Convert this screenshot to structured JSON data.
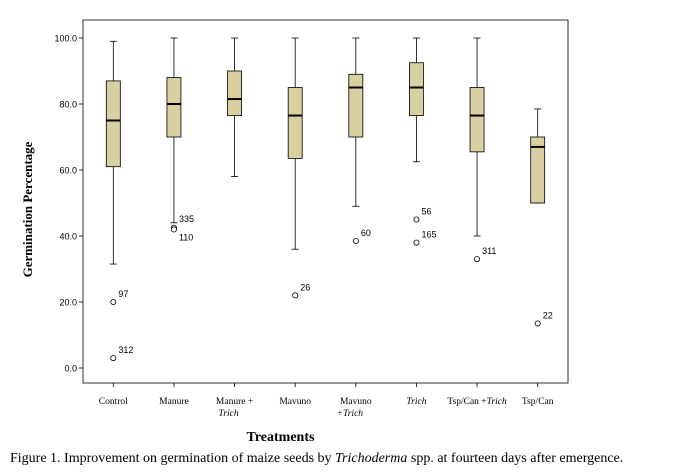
{
  "chart_data": {
    "type": "boxplot",
    "xlabel": "Treatments",
    "ylabel": "Germination Percentage",
    "ylim": [
      0,
      100
    ],
    "yticks": [
      "0.0",
      "20.0",
      "40.0",
      "60.0",
      "80.0",
      "100.0"
    ],
    "box_color": "#d8d0a0",
    "categories": [
      {
        "line1": "Control",
        "line2": "",
        "italic": false,
        "italic2": false
      },
      {
        "line1": "Manure",
        "line2": "",
        "italic": false,
        "italic2": false
      },
      {
        "line1": "Manure +",
        "line2": "Trich",
        "italic": false,
        "italic2": true
      },
      {
        "line1": "Mavuno",
        "line2": "",
        "italic": false,
        "italic2": false
      },
      {
        "line1": "Mavuno",
        "line2": "+Trich",
        "italic": false,
        "italic2": true
      },
      {
        "line1": "Trich",
        "line2": "",
        "italic": true,
        "italic2": false
      },
      {
        "line1": "Tsp/Can +",
        "line1b": "Trich",
        "line2": "",
        "italic": false,
        "italic2": false
      },
      {
        "line1": "Tsp/Can",
        "line2": "",
        "italic": false,
        "italic2": false
      }
    ],
    "boxes": [
      {
        "whisker_low": 31.5,
        "q1": 61,
        "median": 75,
        "q3": 87,
        "whisker_high": 99,
        "outliers": [
          {
            "value": 20,
            "label": "97"
          },
          {
            "value": 3,
            "label": "312"
          }
        ]
      },
      {
        "whisker_low": 44,
        "q1": 70,
        "median": 80,
        "q3": 88,
        "whisker_high": 100,
        "outliers": [
          {
            "value": 42.5,
            "label": "335"
          },
          {
            "value": 42,
            "label": "110"
          }
        ]
      },
      {
        "whisker_low": 58,
        "q1": 76.5,
        "median": 81.5,
        "q3": 90,
        "whisker_high": 100,
        "outliers": []
      },
      {
        "whisker_low": 36,
        "q1": 63.5,
        "median": 76.5,
        "q3": 85,
        "whisker_high": 100,
        "outliers": [
          {
            "value": 22,
            "label": "26"
          }
        ]
      },
      {
        "whisker_low": 49,
        "q1": 70,
        "median": 85,
        "q3": 89,
        "whisker_high": 100,
        "outliers": [
          {
            "value": 38.5,
            "label": "60"
          }
        ]
      },
      {
        "whisker_low": 62.5,
        "q1": 76.5,
        "median": 85,
        "q3": 92.5,
        "whisker_high": 100,
        "outliers": [
          {
            "value": 45,
            "label": "56"
          },
          {
            "value": 38,
            "label": "165"
          }
        ]
      },
      {
        "whisker_low": 40,
        "q1": 65.5,
        "median": 76.5,
        "q3": 85,
        "whisker_high": 100,
        "outliers": [
          {
            "value": 33,
            "label": "311"
          }
        ]
      },
      {
        "whisker_low": 50,
        "q1": 50,
        "median": 67,
        "q3": 70,
        "whisker_high": 78.5,
        "outliers": [
          {
            "value": 13.5,
            "label": "22"
          }
        ]
      }
    ]
  },
  "caption": {
    "prefix": "Figure 1. Improvement on germination of maize seeds by ",
    "italic": "Trichoderma",
    "suffix": " spp. at fourteen days after emergence."
  }
}
